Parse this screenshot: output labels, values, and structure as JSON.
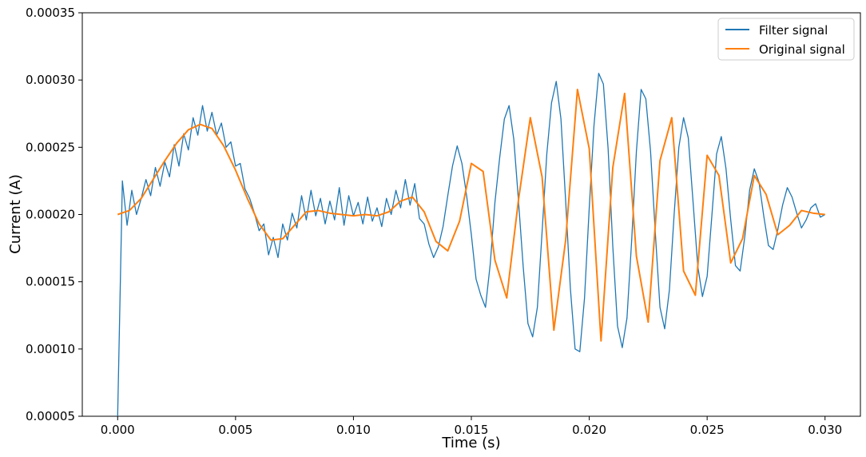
{
  "chart_data": {
    "type": "line",
    "title": "",
    "xlabel": "Time (s)",
    "ylabel": "Current (A)",
    "xlim": [
      -0.0015,
      0.0315
    ],
    "ylim": [
      5e-05,
      0.00035
    ],
    "xticks": [
      0.0,
      0.005,
      0.01,
      0.015,
      0.02,
      0.025,
      0.03
    ],
    "xtick_labels": [
      "0.000",
      "0.005",
      "0.010",
      "0.015",
      "0.020",
      "0.025",
      "0.030"
    ],
    "yticks": [
      5e-05,
      0.0001,
      0.00015,
      0.0002,
      0.00025,
      0.0003,
      0.00035
    ],
    "ytick_labels": [
      "0.00005",
      "0.00010",
      "0.00015",
      "0.00020",
      "0.00025",
      "0.00030",
      "0.00035"
    ],
    "grid": false,
    "legend_position": "top-right",
    "series": [
      {
        "name": "Filter signal",
        "color": "#1f77b4",
        "description_values": "noisy version of original signal; initial spike down to 0.00005 at t=0",
        "x": [
          0.0,
          0.0002,
          0.0004,
          0.0006,
          0.0008,
          0.001,
          0.0012,
          0.0014,
          0.0016,
          0.0018,
          0.002,
          0.0022,
          0.0024,
          0.0026,
          0.0028,
          0.003,
          0.0032,
          0.0034,
          0.0036,
          0.0038,
          0.004,
          0.0042,
          0.0044,
          0.0046,
          0.0048,
          0.005,
          0.0052,
          0.0054,
          0.0056,
          0.0058,
          0.006,
          0.0062,
          0.0064,
          0.0066,
          0.0068,
          0.007,
          0.0072,
          0.0074,
          0.0076,
          0.0078,
          0.008,
          0.0082,
          0.0084,
          0.0086,
          0.0088,
          0.009,
          0.0092,
          0.0094,
          0.0096,
          0.0098,
          0.01,
          0.0102,
          0.0104,
          0.0106,
          0.0108,
          0.011,
          0.0112,
          0.0114,
          0.0116,
          0.0118,
          0.012,
          0.0122,
          0.0124,
          0.0126,
          0.0128,
          0.013,
          0.0132,
          0.0134,
          0.0136,
          0.0138,
          0.014,
          0.0142,
          0.0144,
          0.0146,
          0.0148,
          0.015,
          0.0152,
          0.0154,
          0.0156,
          0.0158,
          0.016,
          0.0162,
          0.0164,
          0.0166,
          0.0168,
          0.017,
          0.0172,
          0.0174,
          0.0176,
          0.0178,
          0.018,
          0.0182,
          0.0184,
          0.0186,
          0.0188,
          0.019,
          0.0192,
          0.0194,
          0.0196,
          0.0198,
          0.02,
          0.0202,
          0.0204,
          0.0206,
          0.0208,
          0.021,
          0.0212,
          0.0214,
          0.0216,
          0.0218,
          0.022,
          0.0222,
          0.0224,
          0.0226,
          0.0228,
          0.023,
          0.0232,
          0.0234,
          0.0236,
          0.0238,
          0.024,
          0.0242,
          0.0244,
          0.0246,
          0.0248,
          0.025,
          0.0252,
          0.0254,
          0.0256,
          0.0258,
          0.026,
          0.0262,
          0.0264,
          0.0266,
          0.0268,
          0.027,
          0.0272,
          0.0274,
          0.0276,
          0.0278,
          0.028,
          0.0282,
          0.0284,
          0.0286,
          0.0288,
          0.029,
          0.0292,
          0.0294,
          0.0296,
          0.0298,
          0.03
        ],
        "y": [
          5e-05,
          0.000225,
          0.000192,
          0.000218,
          0.0002,
          0.000212,
          0.000226,
          0.000214,
          0.000235,
          0.000221,
          0.000239,
          0.000228,
          0.000252,
          0.000236,
          0.00026,
          0.000248,
          0.000272,
          0.000259,
          0.000281,
          0.000262,
          0.000276,
          0.000259,
          0.000268,
          0.00025,
          0.000254,
          0.000236,
          0.000238,
          0.000219,
          0.000212,
          0.000201,
          0.000188,
          0.000193,
          0.00017,
          0.000183,
          0.000168,
          0.000193,
          0.000181,
          0.000201,
          0.00019,
          0.000214,
          0.000196,
          0.000218,
          0.000199,
          0.000212,
          0.000193,
          0.00021,
          0.000196,
          0.00022,
          0.000192,
          0.000214,
          0.000199,
          0.000209,
          0.000193,
          0.000213,
          0.000195,
          0.000205,
          0.000191,
          0.000212,
          0.0002,
          0.000218,
          0.000205,
          0.000226,
          0.000207,
          0.000223,
          0.000197,
          0.000193,
          0.000178,
          0.000168,
          0.000176,
          0.000191,
          0.000214,
          0.000236,
          0.000251,
          0.000238,
          0.000214,
          0.000185,
          0.000152,
          0.00014,
          0.000131,
          0.000163,
          0.000209,
          0.000242,
          0.000271,
          0.000281,
          0.000256,
          0.00021,
          0.000161,
          0.000119,
          0.000109,
          0.000131,
          0.000187,
          0.000245,
          0.000283,
          0.000299,
          0.000271,
          0.00021,
          0.000145,
          0.0001,
          9.8e-05,
          0.000138,
          0.000205,
          0.000266,
          0.000305,
          0.000297,
          0.000249,
          0.000176,
          0.000117,
          0.000101,
          0.000123,
          0.000181,
          0.000247,
          0.000293,
          0.000286,
          0.000247,
          0.000187,
          0.000131,
          0.000115,
          0.000144,
          0.0002,
          0.00025,
          0.000272,
          0.000257,
          0.00021,
          0.000162,
          0.000139,
          0.000154,
          0.000199,
          0.000245,
          0.000258,
          0.000234,
          0.000196,
          0.000162,
          0.000158,
          0.000184,
          0.000218,
          0.000234,
          0.000224,
          0.000199,
          0.000177,
          0.000174,
          0.000189,
          0.000207,
          0.00022,
          0.000213,
          0.000201,
          0.00019,
          0.000196,
          0.000205,
          0.000208,
          0.000198,
          0.0002
        ]
      },
      {
        "name": "Original signal",
        "color": "#ff7f0e",
        "x": [
          0.0,
          0.0005,
          0.001,
          0.0015,
          0.002,
          0.0025,
          0.003,
          0.0035,
          0.004,
          0.0045,
          0.005,
          0.0055,
          0.006,
          0.0065,
          0.007,
          0.0075,
          0.008,
          0.0085,
          0.009,
          0.0095,
          0.01,
          0.0105,
          0.011,
          0.0115,
          0.012,
          0.0125,
          0.013,
          0.0135,
          0.014,
          0.0145,
          0.015,
          0.0155,
          0.016,
          0.0165,
          0.017,
          0.0175,
          0.018,
          0.0185,
          0.019,
          0.0195,
          0.02,
          0.0205,
          0.021,
          0.0215,
          0.022,
          0.0225,
          0.023,
          0.0235,
          0.024,
          0.0245,
          0.025,
          0.0255,
          0.026,
          0.0265,
          0.027,
          0.0275,
          0.028,
          0.0285,
          0.029,
          0.0295,
          0.03
        ],
        "y": [
          0.0002,
          0.000203,
          0.000212,
          0.000226,
          0.00024,
          0.000253,
          0.000263,
          0.000267,
          0.000264,
          0.000251,
          0.000233,
          0.000212,
          0.000193,
          0.000181,
          0.000182,
          0.000192,
          0.000202,
          0.000203,
          0.000201,
          0.0002,
          0.000199,
          0.0002,
          0.000199,
          0.000202,
          0.00021,
          0.000213,
          0.000202,
          0.00018,
          0.000173,
          0.000195,
          0.000238,
          0.000232,
          0.000166,
          0.000138,
          0.000211,
          0.000272,
          0.000228,
          0.000114,
          0.000181,
          0.000293,
          0.000249,
          0.000106,
          0.000235,
          0.00029,
          0.000169,
          0.00012,
          0.00024,
          0.000272,
          0.000158,
          0.00014,
          0.000244,
          0.000229,
          0.000164,
          0.000182,
          0.000229,
          0.000215,
          0.000185,
          0.000192,
          0.000203,
          0.000201,
          0.0002
        ]
      }
    ]
  }
}
